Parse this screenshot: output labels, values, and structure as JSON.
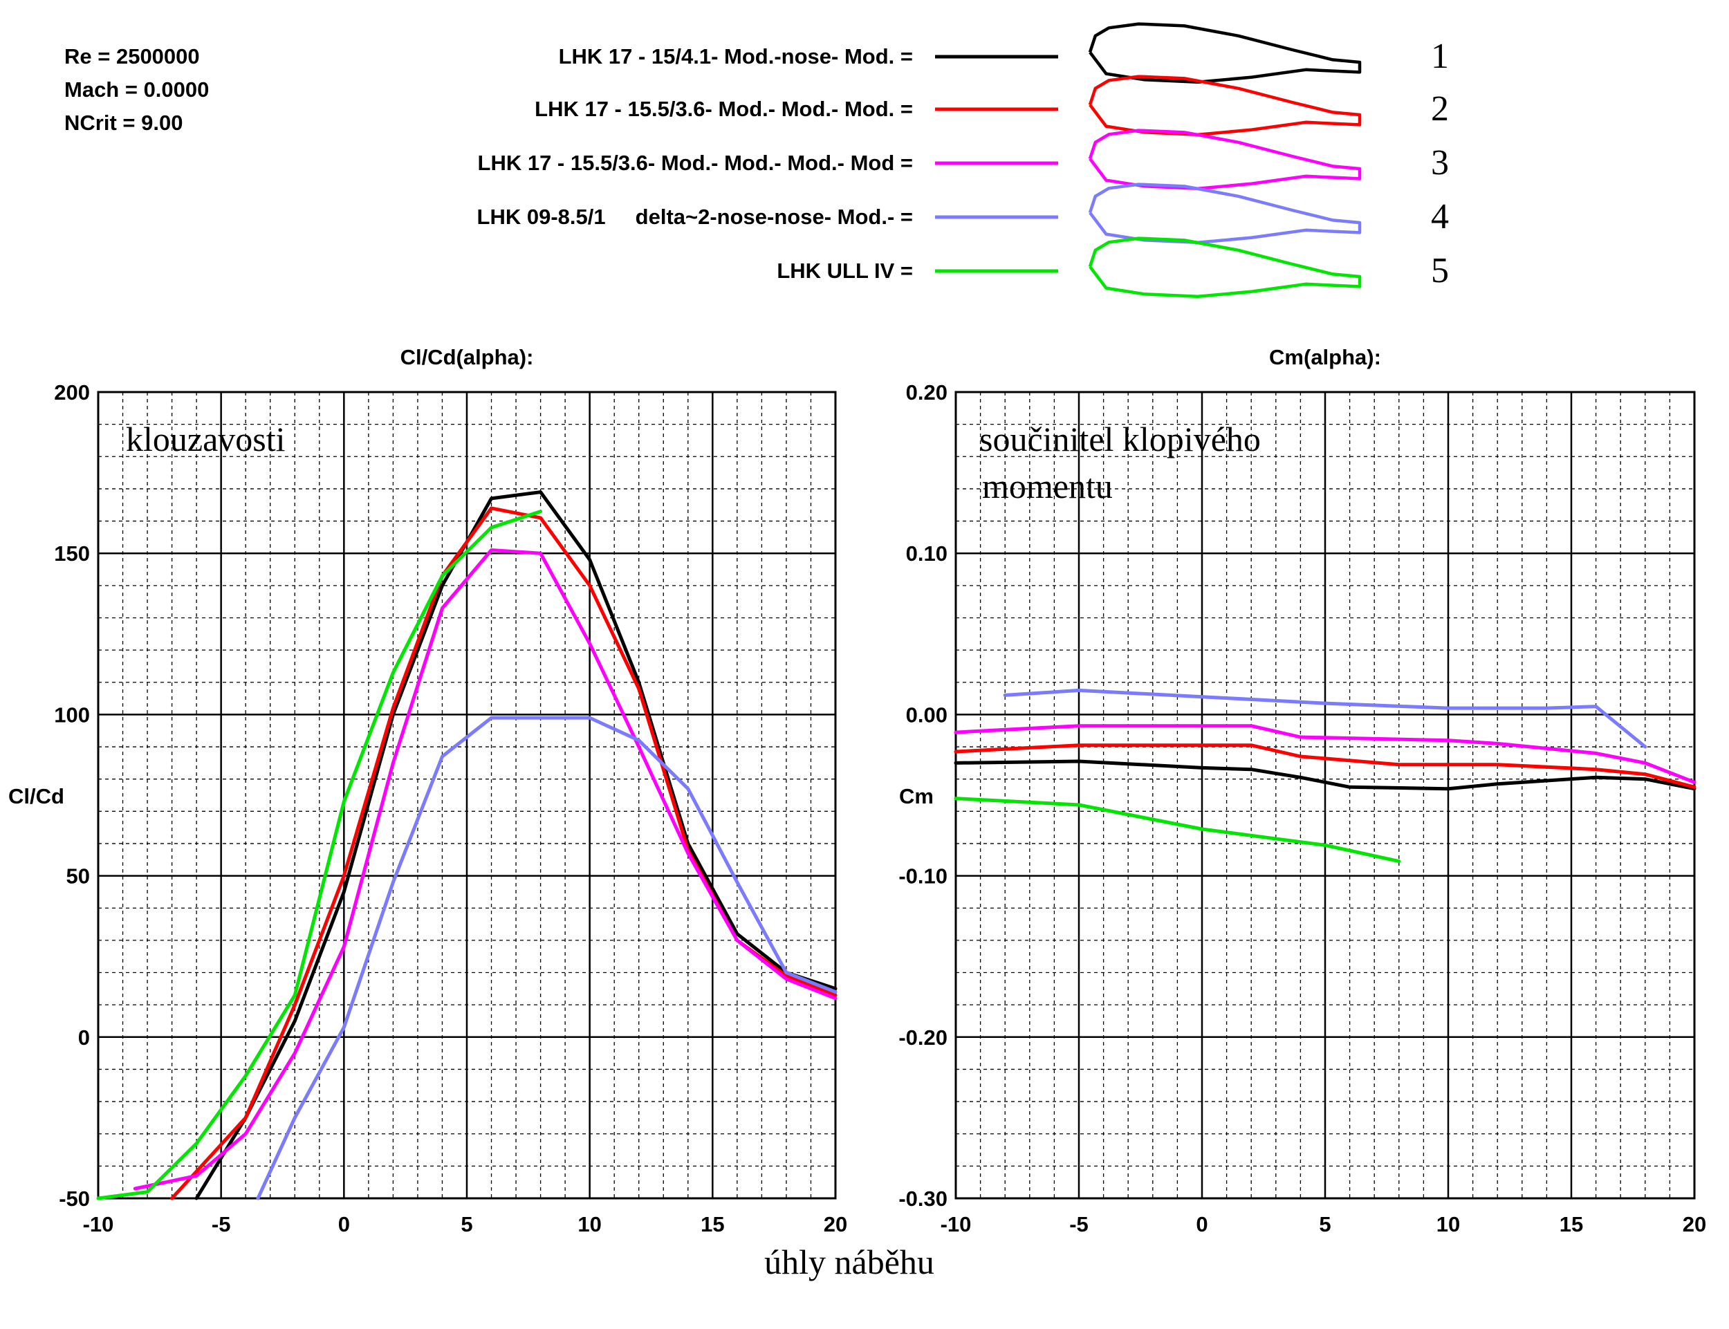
{
  "conditions": {
    "re": "Re = 2500000",
    "mach": "Mach = 0.0000",
    "ncrit": "NCrit = 9.00"
  },
  "legend": [
    {
      "label": "LHK 17 - 15/4.1- Mod.-nose- Mod. =",
      "number": "1",
      "color": "#000000"
    },
    {
      "label": "LHK 17 - 15.5/3.6- Mod.- Mod.- Mod. =",
      "number": "2",
      "color": "#ff0000"
    },
    {
      "label": "LHK 17 - 15.5/3.6- Mod.- Mod.- Mod.- Mod =",
      "number": "3",
      "color": "#ff00ff"
    },
    {
      "label": "LHK 09-8.5/1     delta~2-nose-nose- Mod.- =",
      "number": "4",
      "color": "#7b7bff"
    },
    {
      "label": "LHK ULL IV =",
      "number": "5",
      "color": "#00e600"
    }
  ],
  "x_axis_caption": "úhly  náběhu",
  "chart_data": [
    {
      "type": "line",
      "title": "Cl/Cd(alpha):",
      "annotation": "klouzavosti",
      "ylabel": "Cl/Cd",
      "xlabel": "",
      "xlim": [
        -10,
        20
      ],
      "ylim": [
        -50,
        200
      ],
      "xticks": [
        -10,
        -5,
        0,
        5,
        10,
        15,
        20
      ],
      "yticks": [
        -50,
        0,
        50,
        100,
        150,
        200
      ],
      "xtick_labels": [
        "-10",
        "-5",
        "0",
        "5",
        "10",
        "15",
        "20"
      ],
      "ytick_labels": [
        "-50",
        "0",
        "50",
        "100",
        "150",
        "200"
      ],
      "grid": true,
      "series": [
        {
          "color": "#000000",
          "points": [
            [
              -6,
              -50
            ],
            [
              -4,
              -25
            ],
            [
              -2,
              5
            ],
            [
              0,
              45
            ],
            [
              2,
              100
            ],
            [
              4,
              140
            ],
            [
              6,
              167
            ],
            [
              8,
              169
            ],
            [
              10,
              148
            ],
            [
              12,
              110
            ],
            [
              14,
              60
            ],
            [
              16,
              32
            ],
            [
              18,
              20
            ],
            [
              20,
              15
            ]
          ]
        },
        {
          "color": "#ff0000",
          "points": [
            [
              -7,
              -50
            ],
            [
              -4,
              -25
            ],
            [
              -2,
              10
            ],
            [
              0,
              50
            ],
            [
              2,
              102
            ],
            [
              4,
              143
            ],
            [
              6,
              164
            ],
            [
              8,
              161
            ],
            [
              10,
              140
            ],
            [
              12,
              108
            ],
            [
              14,
              58
            ],
            [
              16,
              30
            ],
            [
              18,
              19
            ],
            [
              20,
              13
            ]
          ]
        },
        {
          "color": "#ff00ff",
          "points": [
            [
              -8.5,
              -47
            ],
            [
              -6,
              -43
            ],
            [
              -4,
              -30
            ],
            [
              -2,
              -5
            ],
            [
              0,
              28
            ],
            [
              2,
              85
            ],
            [
              4,
              133
            ],
            [
              6,
              151
            ],
            [
              8,
              150
            ],
            [
              10,
              122
            ],
            [
              12,
              90
            ],
            [
              14,
              57
            ],
            [
              16,
              30
            ],
            [
              18,
              18
            ],
            [
              20,
              12
            ]
          ]
        },
        {
          "color": "#7b7bff",
          "points": [
            [
              -3.5,
              -50
            ],
            [
              -2,
              -25
            ],
            [
              0,
              3
            ],
            [
              2,
              48
            ],
            [
              4,
              87
            ],
            [
              6,
              99
            ],
            [
              8,
              99
            ],
            [
              10,
              99
            ],
            [
              12,
              92
            ],
            [
              14,
              77
            ],
            [
              16,
              48
            ],
            [
              18,
              20
            ],
            [
              20,
              14
            ]
          ]
        },
        {
          "color": "#00e600",
          "points": [
            [
              -10,
              -50
            ],
            [
              -8,
              -48
            ],
            [
              -6,
              -33
            ],
            [
              -4,
              -12
            ],
            [
              -2,
              13
            ],
            [
              0,
              73
            ],
            [
              2,
              113
            ],
            [
              4,
              143
            ],
            [
              6,
              158
            ],
            [
              8,
              163
            ]
          ]
        }
      ]
    },
    {
      "type": "line",
      "title": "Cm(alpha):",
      "annotation": "součinitel klopivého momentu",
      "ylabel": "Cm",
      "xlabel": "",
      "xlim": [
        -10,
        20
      ],
      "ylim": [
        -0.3,
        0.2
      ],
      "xticks": [
        -10,
        -5,
        0,
        5,
        10,
        15,
        20
      ],
      "yticks": [
        -0.3,
        -0.2,
        -0.1,
        0.0,
        0.1,
        0.2
      ],
      "xtick_labels": [
        "-10",
        "-5",
        "0",
        "5",
        "10",
        "15",
        "20"
      ],
      "ytick_labels": [
        "-0.30",
        "-0.20",
        "-0.10",
        "0.00",
        "0.10",
        "0.20"
      ],
      "grid": true,
      "series": [
        {
          "color": "#000000",
          "points": [
            [
              -10,
              -0.03
            ],
            [
              -5,
              -0.029
            ],
            [
              0,
              -0.033
            ],
            [
              2,
              -0.034
            ],
            [
              4,
              -0.039
            ],
            [
              6,
              -0.045
            ],
            [
              10,
              -0.046
            ],
            [
              12,
              -0.043
            ],
            [
              16,
              -0.039
            ],
            [
              18,
              -0.04
            ],
            [
              20,
              -0.046
            ]
          ]
        },
        {
          "color": "#ff0000",
          "points": [
            [
              -10,
              -0.023
            ],
            [
              -5,
              -0.019
            ],
            [
              0,
              -0.019
            ],
            [
              2,
              -0.019
            ],
            [
              4,
              -0.026
            ],
            [
              8,
              -0.031
            ],
            [
              12,
              -0.031
            ],
            [
              16,
              -0.034
            ],
            [
              18,
              -0.037
            ],
            [
              20,
              -0.045
            ]
          ]
        },
        {
          "color": "#ff00ff",
          "points": [
            [
              -10,
              -0.011
            ],
            [
              -5,
              -0.007
            ],
            [
              0,
              -0.007
            ],
            [
              2,
              -0.007
            ],
            [
              4,
              -0.014
            ],
            [
              10,
              -0.016
            ],
            [
              12,
              -0.018
            ],
            [
              16,
              -0.024
            ],
            [
              18,
              -0.03
            ],
            [
              20,
              -0.042
            ]
          ]
        },
        {
          "color": "#7b7bff",
          "points": [
            [
              -8,
              0.012
            ],
            [
              -5,
              0.015
            ],
            [
              0,
              0.011
            ],
            [
              5,
              0.007
            ],
            [
              10,
              0.004
            ],
            [
              14,
              0.004
            ],
            [
              16,
              0.005
            ],
            [
              18,
              -0.02
            ]
          ]
        },
        {
          "color": "#00e600",
          "points": [
            [
              -10,
              -0.052
            ],
            [
              -5,
              -0.056
            ],
            [
              0,
              -0.071
            ],
            [
              5,
              -0.081
            ],
            [
              8,
              -0.091
            ]
          ]
        }
      ]
    }
  ]
}
